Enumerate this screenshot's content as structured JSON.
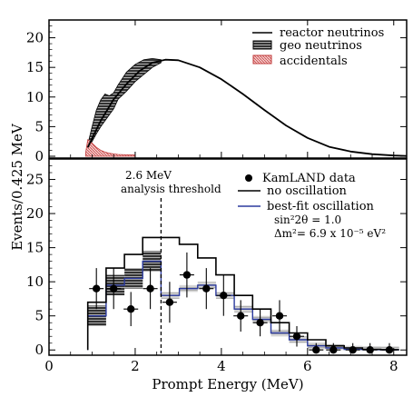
{
  "chart_data": [
    {
      "type": "line",
      "panel": "top",
      "ylabel": "Events/0.425 MeV",
      "xlim": [
        0,
        8.3
      ],
      "ylim": [
        0,
        23
      ],
      "x_ticks": [
        0,
        2,
        4,
        6,
        8
      ],
      "y_ticks": [
        0,
        5,
        10,
        15,
        20
      ],
      "legend_position": "top-right",
      "legend": [
        "reactor neutrinos",
        "geo neutrinos",
        "accidentals"
      ],
      "series": [
        {
          "name": "reactor neutrinos",
          "x": [
            0.9,
            1.2,
            1.5,
            1.8,
            2.1,
            2.4,
            2.7,
            3.0,
            3.5,
            4.0,
            4.5,
            5.0,
            5.5,
            6.0,
            6.5,
            7.0,
            7.5,
            8.0,
            8.3
          ],
          "y": [
            1.5,
            6.0,
            9.6,
            12.2,
            14.4,
            15.8,
            16.3,
            16.2,
            15.0,
            13.0,
            10.5,
            7.8,
            5.2,
            3.1,
            1.6,
            0.8,
            0.35,
            0.12,
            0.05
          ]
        },
        {
          "name": "geo neutrinos",
          "x": [
            0.9,
            1.0,
            1.1,
            1.2,
            1.3,
            1.4,
            1.5,
            1.6,
            1.8,
            2.0,
            2.2,
            2.4,
            2.6
          ],
          "y_upper": [
            2.0,
            5.0,
            7.8,
            9.5,
            10.5,
            10.2,
            10.7,
            12.0,
            14.2,
            15.5,
            16.3,
            16.5,
            16.3
          ],
          "y_lower": [
            1.5,
            2.5,
            3.8,
            5.0,
            6.0,
            7.0,
            8.0,
            9.6,
            11.0,
            12.6,
            13.8,
            15.0,
            15.8
          ]
        },
        {
          "name": "accidentals",
          "x": [
            0.85,
            0.9,
            1.0,
            1.1,
            1.2,
            1.3,
            1.4,
            1.5,
            1.6,
            1.8,
            2.0
          ],
          "y": [
            0.5,
            2.8,
            2.2,
            1.5,
            1.0,
            0.7,
            0.5,
            0.4,
            0.3,
            0.25,
            0.2
          ]
        }
      ]
    },
    {
      "type": "line",
      "panel": "bottom",
      "xlabel": "Prompt Energy (MeV)",
      "xlim": [
        0,
        8.3
      ],
      "ylim": [
        -0.5,
        28
      ],
      "x_ticks": [
        0,
        2,
        4,
        6,
        8
      ],
      "y_ticks": [
        0,
        5,
        10,
        15,
        20,
        25
      ],
      "legend_position": "top-right",
      "legend": [
        "KamLAND data",
        "no oscillation",
        "best-fit oscillation"
      ],
      "fit_param_1": "sin²2θ = 1.0",
      "fit_param_2": "Δm²= 6.9 x 10⁻⁵ eV²",
      "threshold": {
        "energy": 2.6,
        "label_1": "2.6 MeV",
        "label_2": "analysis threshold"
      },
      "bin_edges": [
        0.9,
        1.325,
        1.75,
        2.175,
        2.6,
        3.025,
        3.45,
        3.875,
        4.3,
        4.725,
        5.15,
        5.575,
        6.0,
        6.425,
        6.85,
        7.275,
        7.7,
        8.125
      ],
      "series": [
        {
          "name": "KamLAND data",
          "x": [
            1.1,
            1.5,
            1.9,
            2.35,
            2.8,
            3.2,
            3.65,
            4.05,
            4.45,
            4.9,
            5.35,
            5.75,
            6.2,
            6.6,
            7.05,
            7.45,
            7.9
          ],
          "y": [
            9,
            9,
            6,
            9,
            7,
            11,
            9,
            8,
            5,
            4,
            5,
            2,
            0,
            0,
            0,
            0,
            0
          ],
          "yerr": [
            3,
            3,
            2.5,
            3,
            3,
            3.3,
            3,
            3,
            2.3,
            2,
            2.3,
            1.5,
            1,
            1,
            1,
            1,
            1
          ]
        },
        {
          "name": "no oscillation",
          "y": [
            7,
            12,
            14,
            16.5,
            16.5,
            15.5,
            13.5,
            11,
            8,
            6,
            4,
            2.5,
            1.5,
            0.6,
            0.3,
            0.1,
            0.05
          ]
        },
        {
          "name": "best-fit oscillation",
          "y": [
            5,
            9.5,
            10.5,
            13,
            8,
            9,
            9.5,
            8,
            6,
            4.5,
            2.5,
            1.5,
            0.6,
            0.3,
            0.1,
            0.05,
            0.02
          ],
          "band": 0.5
        }
      ]
    }
  ]
}
